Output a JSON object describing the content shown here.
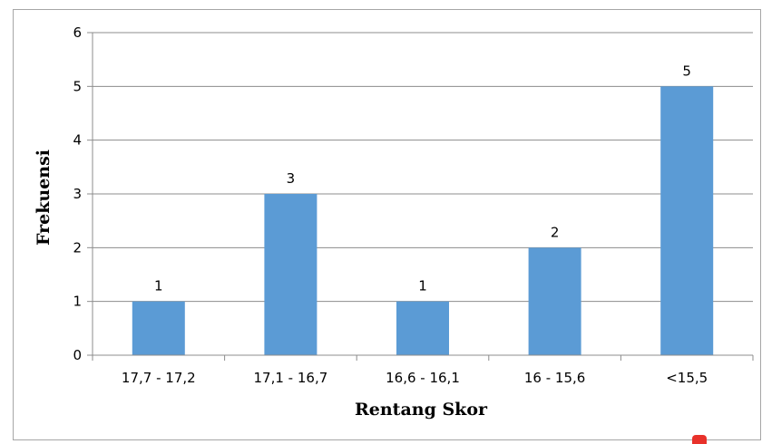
{
  "chart_data": {
    "type": "bar",
    "categories": [
      "17,7 - 17,2",
      "17,1 - 16,7",
      "16,6 - 16,1",
      "16 - 15,6",
      "<15,5"
    ],
    "values": [
      1,
      3,
      1,
      2,
      5
    ],
    "data_labels": [
      "1",
      "3",
      "1",
      "2",
      "5"
    ],
    "title": "",
    "xlabel": "Rentang Skor",
    "ylabel": "Frekuensi",
    "ylim": [
      0,
      6
    ],
    "yticks": [
      0,
      1,
      2,
      3,
      4,
      5,
      6
    ],
    "grid": true,
    "legend": "none",
    "colors": {
      "bar": "#5b9bd5",
      "grid": "#8c8c8c",
      "axis": "#8c8c8c",
      "text": "#000000",
      "frame": "#a6a6a6",
      "corner_mark": "#e8312a"
    }
  }
}
